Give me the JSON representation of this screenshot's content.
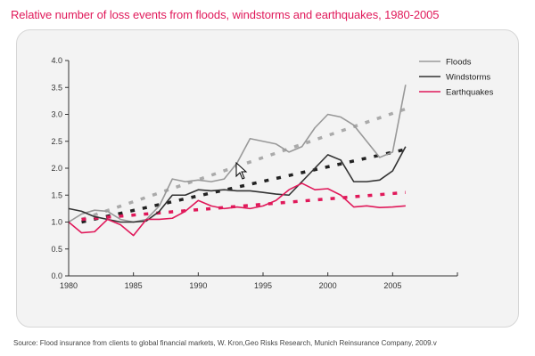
{
  "chart_data": {
    "type": "line",
    "title": "Relative number of loss events from floods, windstorms and earthquakes, 1980-2005",
    "xlabel": "",
    "ylabel": "",
    "xlim": [
      1980,
      2010
    ],
    "ylim": [
      0.0,
      4.0
    ],
    "x_ticks": [
      1980,
      1985,
      1990,
      1995,
      2000,
      2005
    ],
    "x_tick_labels": [
      "1980",
      "1985",
      "1990",
      "1995",
      "2000",
      "2005"
    ],
    "y_ticks": [
      0.0,
      0.5,
      1.0,
      1.5,
      2.0,
      2.5,
      3.0,
      3.5,
      4.0
    ],
    "y_tick_labels": [
      "0.0",
      "0.5",
      "1.0",
      "1.5",
      "2.0",
      "2.5",
      "3.0",
      "3.5",
      "4.0"
    ],
    "grid": false,
    "legend_position": "top-right",
    "x": [
      1980,
      1981,
      1982,
      1983,
      1984,
      1985,
      1986,
      1987,
      1988,
      1989,
      1990,
      1991,
      1992,
      1993,
      1994,
      1995,
      1996,
      1997,
      1998,
      1999,
      2000,
      2001,
      2002,
      2003,
      2004,
      2005,
      2006
    ],
    "series": [
      {
        "name": "Floods",
        "color": "#999999",
        "values": [
          1.0,
          1.15,
          1.22,
          1.2,
          1.05,
          1.0,
          1.05,
          1.3,
          1.8,
          1.75,
          1.78,
          1.75,
          1.8,
          2.1,
          2.55,
          2.5,
          2.45,
          2.3,
          2.4,
          2.75,
          3.0,
          2.95,
          2.8,
          2.5,
          2.2,
          2.3,
          3.55
        ],
        "trend": {
          "x": [
            1981,
            2006
          ],
          "values": [
            1.05,
            3.1
          ],
          "color": "#aaaaaa"
        }
      },
      {
        "name": "Windstorms",
        "color": "#333333",
        "values": [
          1.25,
          1.2,
          1.1,
          1.05,
          1.0,
          1.0,
          1.02,
          1.2,
          1.5,
          1.5,
          1.6,
          1.58,
          1.6,
          1.58,
          1.58,
          1.55,
          1.52,
          1.5,
          1.75,
          2.0,
          2.25,
          2.15,
          1.75,
          1.75,
          1.78,
          1.95,
          2.4
        ],
        "trend": {
          "x": [
            1981,
            2006
          ],
          "values": [
            1.0,
            2.35
          ],
          "color": "#222222"
        }
      },
      {
        "name": "Earthquakes",
        "color": "#e0195a",
        "values": [
          1.0,
          0.8,
          0.82,
          1.05,
          0.95,
          0.75,
          1.05,
          1.05,
          1.07,
          1.2,
          1.4,
          1.3,
          1.25,
          1.28,
          1.25,
          1.3,
          1.4,
          1.6,
          1.72,
          1.6,
          1.62,
          1.5,
          1.28,
          1.3,
          1.27,
          1.28,
          1.3
        ],
        "trend": {
          "x": [
            1981,
            2006
          ],
          "values": [
            1.05,
            1.55
          ],
          "color": "#e0195a"
        }
      }
    ]
  },
  "source": "Source: Flood insurance from clients to global financial markets, W. Kron,Geo Risks Research, Munich Reinsurance Company, 2009.v"
}
